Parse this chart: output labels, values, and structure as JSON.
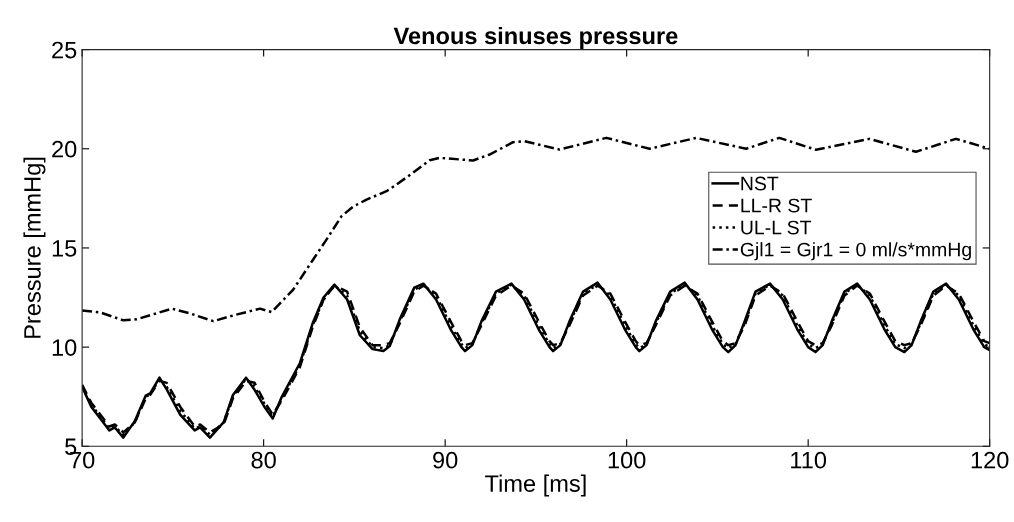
{
  "chart_data": {
    "type": "line",
    "title": "Venous sinuses pressure",
    "xlabel": "Time [ms]",
    "ylabel": "Pressure [mmHg]",
    "xlim": [
      70,
      120
    ],
    "xticks": [
      70,
      80,
      90,
      100,
      110,
      120
    ],
    "ylim": [
      5,
      25
    ],
    "yticks": [
      5,
      10,
      15,
      20,
      25
    ],
    "grid": false,
    "legend": "right",
    "marker": "none",
    "x": [
      70,
      70.5,
      71,
      71.5,
      71.8,
      72.27,
      72.9,
      73.5,
      73.75,
      74.26,
      74.66,
      75.4,
      76.2,
      76.5,
      77.04,
      77.8,
      78.3,
      79.03,
      79.5,
      80.07,
      80.5,
      81,
      82,
      82.7,
      83.3,
      83.9,
      84.6,
      85.3,
      86,
      86.6,
      86.95,
      87.5,
      88.3,
      88.8,
      89.5,
      90.3,
      90.9,
      91.1,
      91.5,
      92,
      92.8,
      93.65,
      94.35,
      95.15,
      95.75,
      95.95,
      96.35,
      96.85,
      97.6,
      98.4,
      99.1,
      99.9,
      100.5,
      100.7,
      101.1,
      101.6,
      102.4,
      103.2,
      103.9,
      104.7,
      105.3,
      105.6,
      106,
      106.5,
      107.1,
      107.9,
      108.6,
      109.4,
      110,
      110.4,
      110.8,
      111.3,
      112,
      112.7,
      113.4,
      114.2,
      114.8,
      115.3,
      115.7,
      116.2,
      116.9,
      117.6,
      118.3,
      119.1,
      119.7,
      120
    ],
    "series": [
      {
        "name": "NST",
        "color": "#000000",
        "line_style": "solid",
        "values": [
          8.0,
          7.0,
          6.4,
          5.8,
          5.95,
          5.44,
          6.27,
          7.55,
          7.67,
          8.46,
          7.87,
          6.6,
          5.8,
          5.95,
          5.44,
          6.22,
          7.57,
          8.46,
          7.85,
          6.95,
          6.4,
          7.5,
          9.2,
          11.2,
          12.5,
          13.15,
          12.4,
          10.6,
          9.9,
          9.8,
          10.05,
          11.4,
          13.0,
          13.2,
          12.4,
          10.9,
          10.0,
          9.8,
          10.1,
          11.3,
          12.8,
          13.2,
          12.4,
          10.9,
          10.0,
          9.8,
          10.1,
          11.3,
          12.8,
          13.25,
          12.4,
          10.9,
          10.0,
          9.8,
          10.1,
          11.3,
          12.8,
          13.25,
          12.4,
          10.9,
          10.0,
          9.75,
          10.1,
          11.3,
          12.8,
          13.2,
          12.4,
          10.9,
          10.0,
          9.75,
          10.1,
          11.3,
          12.8,
          13.2,
          12.4,
          10.9,
          10.0,
          9.75,
          10.1,
          11.3,
          12.8,
          13.2,
          12.4,
          10.9,
          10.0,
          9.85
        ]
      },
      {
        "name": "LL-R ST",
        "color": "#000000",
        "line_style": "dashed",
        "values": [
          8.1,
          7.2,
          6.6,
          6.0,
          6.1,
          5.7,
          6.2,
          7.4,
          7.6,
          8.3,
          8.2,
          7.0,
          6.0,
          6.1,
          5.7,
          6.1,
          7.4,
          8.3,
          8.2,
          7.2,
          6.6,
          7.3,
          9.0,
          11.0,
          12.4,
          13.1,
          12.8,
          11.0,
          10.1,
          10.1,
          10.2,
          11.2,
          12.8,
          13.1,
          12.7,
          11.3,
          10.3,
          10.1,
          10.2,
          11.1,
          12.6,
          13.1,
          12.7,
          11.3,
          10.3,
          10.1,
          10.2,
          11.1,
          12.6,
          13.1,
          12.7,
          11.3,
          10.3,
          10.1,
          10.2,
          11.1,
          12.6,
          13.1,
          12.7,
          11.3,
          10.3,
          10.1,
          10.2,
          11.1,
          12.6,
          13.1,
          12.7,
          11.3,
          10.3,
          10.1,
          10.2,
          11.1,
          12.6,
          13.1,
          12.7,
          11.3,
          10.3,
          10.1,
          10.2,
          11.1,
          12.6,
          13.1,
          12.7,
          11.3,
          10.3,
          10.2
        ]
      },
      {
        "name": "UL-L ST",
        "color": "#000000",
        "line_style": "dotted",
        "values": [
          8.0,
          7.1,
          6.5,
          5.9,
          6.0,
          5.6,
          6.2,
          7.5,
          7.6,
          8.4,
          8.0,
          6.8,
          5.9,
          6.0,
          5.6,
          6.2,
          7.5,
          8.4,
          8.0,
          7.1,
          6.5,
          7.4,
          9.1,
          11.1,
          12.4,
          13.1,
          12.6,
          10.8,
          10.0,
          9.95,
          10.1,
          11.3,
          12.9,
          13.15,
          12.6,
          11.1,
          10.15,
          9.95,
          10.15,
          11.2,
          12.7,
          13.15,
          12.6,
          11.1,
          10.15,
          9.95,
          10.15,
          11.2,
          12.7,
          13.15,
          12.6,
          11.1,
          10.15,
          9.95,
          10.15,
          11.2,
          12.7,
          13.15,
          12.6,
          11.1,
          10.15,
          9.95,
          10.15,
          11.2,
          12.7,
          13.15,
          12.6,
          11.1,
          10.15,
          9.95,
          10.15,
          11.2,
          12.7,
          13.15,
          12.6,
          11.1,
          10.15,
          9.95,
          10.15,
          11.2,
          12.7,
          13.15,
          12.6,
          11.1,
          10.15,
          10.0
        ]
      },
      {
        "name": "Gjl1 = Gjr1 = 0 ml/s*mmHg",
        "color": "#000000",
        "line_style": "dashdot",
        "x": [
          70,
          71,
          72.27,
          73,
          74.94,
          75.94,
          77.23,
          78.33,
          79.8,
          80.44,
          81.63,
          82.73,
          83.47,
          84.29,
          84.93,
          85.67,
          86.77,
          87.32,
          88.23,
          89.15,
          89.7,
          91.54,
          92.45,
          93.74,
          94.38,
          96.3,
          98.88,
          101.26,
          103.83,
          106.58,
          108.41,
          110.43,
          113.37,
          115.94,
          118.14,
          120
        ],
        "values": [
          11.85,
          11.75,
          11.35,
          11.4,
          11.94,
          11.7,
          11.31,
          11.6,
          11.94,
          11.77,
          12.9,
          14.42,
          15.43,
          16.6,
          17.08,
          17.44,
          17.86,
          18.2,
          18.79,
          19.42,
          19.54,
          19.41,
          19.71,
          20.33,
          20.38,
          19.96,
          20.55,
          20.0,
          20.55,
          20.0,
          20.55,
          19.95,
          20.5,
          19.85,
          20.5,
          20.0
        ]
      }
    ]
  }
}
